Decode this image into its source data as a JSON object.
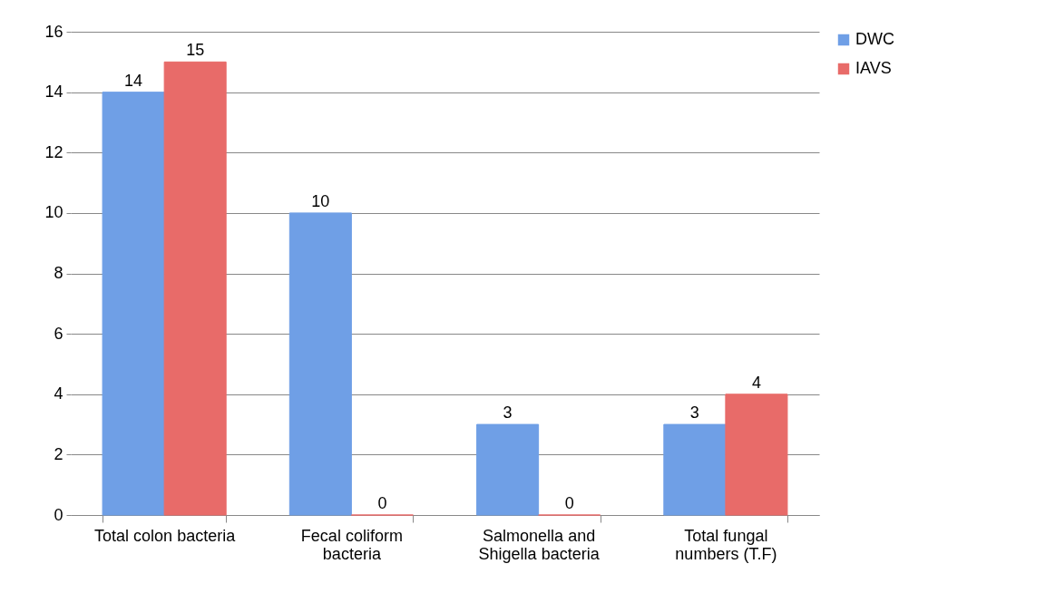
{
  "chart_data": {
    "type": "bar",
    "categories": [
      "Total colon bacteria",
      "Fecal coliform bacteria",
      "Salmonella and Shigella bacteria",
      "Total fungal numbers (T.F)"
    ],
    "series": [
      {
        "name": "DWC",
        "color": "#6f9fe6",
        "values": [
          14,
          10,
          3,
          3
        ]
      },
      {
        "name": "IAVS",
        "color": "#e86b69",
        "values": [
          15,
          0,
          0,
          4
        ]
      }
    ],
    "ylim": [
      0,
      16
    ],
    "yticks": [
      0,
      2,
      4,
      6,
      8,
      10,
      12,
      14,
      16
    ],
    "grid": "y",
    "legend": "right",
    "data_labels": true
  }
}
